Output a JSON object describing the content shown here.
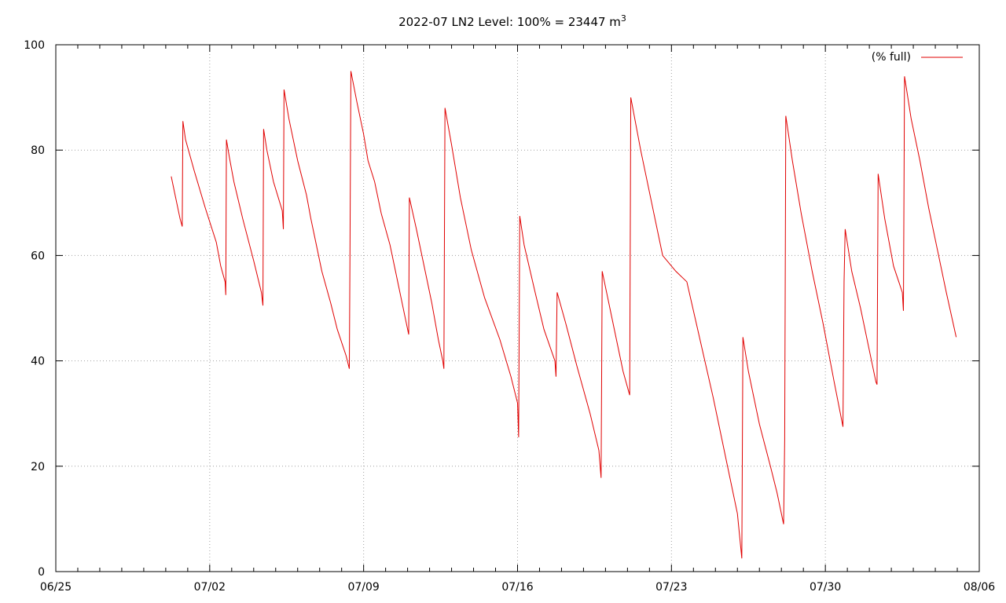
{
  "chart_data": {
    "type": "line",
    "title": "2022-07 LN2 Level: 100% = 23447 m",
    "title_superscript": "3",
    "xlabel": "",
    "ylabel": "",
    "xlim": [
      "06/25",
      "08/06"
    ],
    "ylim": [
      0,
      100
    ],
    "x_ticks": [
      "06/25",
      "07/02",
      "07/09",
      "07/16",
      "07/23",
      "07/30",
      "08/06"
    ],
    "y_ticks": [
      "0",
      "20",
      "40",
      "60",
      "80",
      "100"
    ],
    "grid": true,
    "legend_position": "top-right",
    "series": [
      {
        "name": "(% full)",
        "color": "#e00000",
        "x_unit": "days since 06/25",
        "points": [
          [
            5.25,
            75
          ],
          [
            5.45,
            71
          ],
          [
            5.65,
            67
          ],
          [
            5.75,
            65.5
          ],
          [
            5.78,
            85.5
          ],
          [
            5.9,
            82
          ],
          [
            6.3,
            76
          ],
          [
            6.8,
            69
          ],
          [
            7.3,
            62.5
          ],
          [
            7.5,
            58
          ],
          [
            7.7,
            55
          ],
          [
            7.73,
            52.5
          ],
          [
            7.76,
            82
          ],
          [
            7.9,
            78.5
          ],
          [
            8.1,
            74
          ],
          [
            8.5,
            67
          ],
          [
            9,
            59
          ],
          [
            9.35,
            53
          ],
          [
            9.42,
            50.5
          ],
          [
            9.45,
            84
          ],
          [
            9.6,
            80
          ],
          [
            9.9,
            74
          ],
          [
            10.3,
            68.5
          ],
          [
            10.35,
            65
          ],
          [
            10.38,
            91.5
          ],
          [
            10.6,
            86
          ],
          [
            11.0,
            78
          ],
          [
            11.4,
            71.5
          ],
          [
            11.6,
            67
          ],
          [
            11.8,
            63
          ],
          [
            12.1,
            57
          ],
          [
            12.5,
            51
          ],
          [
            12.8,
            46
          ],
          [
            13.2,
            41
          ],
          [
            13.35,
            38.5
          ],
          [
            13.38,
            61
          ],
          [
            13.42,
            95
          ],
          [
            13.7,
            89
          ],
          [
            14.0,
            83
          ],
          [
            14.2,
            78
          ],
          [
            14.5,
            74
          ],
          [
            14.8,
            68
          ],
          [
            15.2,
            62
          ],
          [
            15.6,
            54
          ],
          [
            15.9,
            48
          ],
          [
            16.05,
            45
          ],
          [
            16.08,
            71
          ],
          [
            16.4,
            65
          ],
          [
            16.8,
            57
          ],
          [
            17.1,
            51
          ],
          [
            17.4,
            44
          ],
          [
            17.6,
            40
          ],
          [
            17.65,
            38.5
          ],
          [
            17.7,
            88
          ],
          [
            18.0,
            81
          ],
          [
            18.4,
            71
          ],
          [
            18.9,
            61
          ],
          [
            19.5,
            52
          ],
          [
            20.2,
            44
          ],
          [
            20.7,
            37
          ],
          [
            21.0,
            32
          ],
          [
            21.05,
            25.5
          ],
          [
            21.1,
            67.5
          ],
          [
            21.3,
            62
          ],
          [
            21.8,
            53
          ],
          [
            22.2,
            46
          ],
          [
            22.7,
            40
          ],
          [
            22.75,
            37
          ],
          [
            22.8,
            53
          ],
          [
            23.2,
            47
          ],
          [
            23.7,
            39
          ],
          [
            24.3,
            30
          ],
          [
            24.7,
            23
          ],
          [
            24.8,
            17.8
          ],
          [
            24.85,
            57
          ],
          [
            25.1,
            52
          ],
          [
            25.4,
            46
          ],
          [
            25.8,
            38
          ],
          [
            26.1,
            33.5
          ],
          [
            26.15,
            90
          ],
          [
            26.6,
            80
          ],
          [
            27.1,
            70
          ],
          [
            27.5,
            62
          ],
          [
            27.6,
            60
          ],
          [
            28.2,
            57
          ],
          [
            28.7,
            55
          ],
          [
            29.3,
            44
          ],
          [
            29.9,
            33
          ],
          [
            30.5,
            21
          ],
          [
            31.0,
            11
          ],
          [
            31.2,
            2.5
          ],
          [
            31.25,
            44.5
          ],
          [
            31.5,
            38
          ],
          [
            32.0,
            28
          ],
          [
            32.5,
            20
          ],
          [
            32.8,
            15
          ],
          [
            33.1,
            9
          ],
          [
            33.15,
            25
          ],
          [
            33.2,
            86.5
          ],
          [
            33.5,
            78
          ],
          [
            33.9,
            68
          ],
          [
            34.4,
            57
          ],
          [
            34.9,
            47
          ],
          [
            35.4,
            36
          ],
          [
            35.8,
            27.5
          ],
          [
            35.85,
            55
          ],
          [
            35.9,
            65
          ],
          [
            36.2,
            57
          ],
          [
            36.6,
            50
          ],
          [
            37.0,
            42
          ],
          [
            37.3,
            36
          ],
          [
            37.35,
            35.5
          ],
          [
            37.4,
            75.5
          ],
          [
            37.7,
            67
          ],
          [
            38.1,
            58
          ],
          [
            38.5,
            53
          ],
          [
            38.55,
            49.5
          ],
          [
            38.6,
            94
          ],
          [
            38.9,
            86
          ],
          [
            39.3,
            78
          ],
          [
            39.7,
            69
          ],
          [
            40.1,
            61
          ],
          [
            40.5,
            53
          ],
          [
            40.95,
            44.5
          ]
        ]
      }
    ]
  }
}
